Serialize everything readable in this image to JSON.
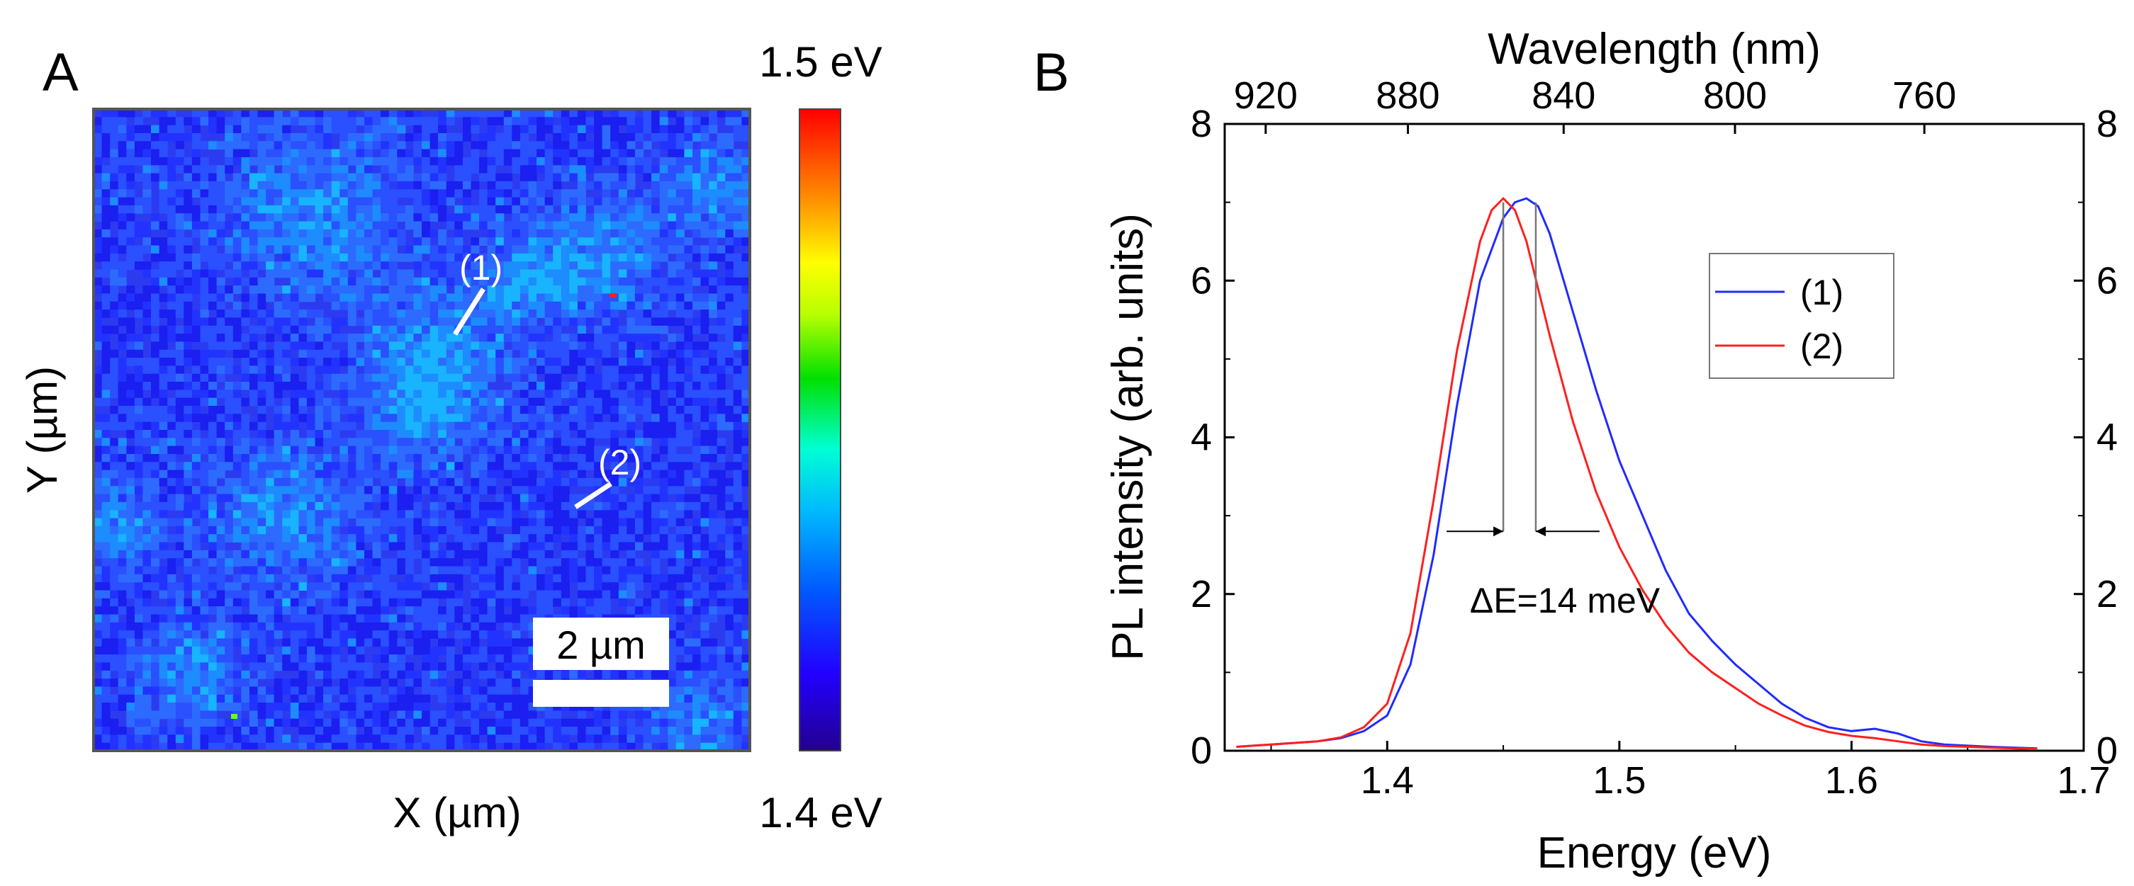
{
  "chart_data": [
    {
      "panel": "A",
      "type": "heatmap",
      "xlabel": "X (µm)",
      "ylabel": "Y (µm)",
      "colorbar": {
        "max_label": "1.5 eV",
        "min_label": "1.4 eV",
        "range": [
          1.4,
          1.5
        ],
        "unit": "eV"
      },
      "scalebar_label": "2 µm",
      "markers": [
        {
          "label": "(1)"
        },
        {
          "label": "(2)"
        }
      ]
    },
    {
      "panel": "B",
      "type": "line",
      "xlabel": "Energy (eV)",
      "ylabel": "PL intensity (arb. units)",
      "top_xlabel": "Wavelength (nm)",
      "xlim": [
        1.33,
        1.7
      ],
      "ylim": [
        0,
        8
      ],
      "xticks": [
        1.4,
        1.5,
        1.6,
        1.7
      ],
      "yticks": [
        0,
        2,
        4,
        6,
        8
      ],
      "top_ticks": [
        920,
        880,
        840,
        800,
        760
      ],
      "annotation": "ΔE=14 meV",
      "peaks": {
        "series1_eV": 1.464,
        "series2_eV": 1.45
      },
      "series": [
        {
          "name": "(1)",
          "color": "#1f2bff",
          "x": [
            1.335,
            1.35,
            1.37,
            1.38,
            1.39,
            1.4,
            1.41,
            1.42,
            1.43,
            1.44,
            1.45,
            1.455,
            1.46,
            1.465,
            1.47,
            1.48,
            1.49,
            1.5,
            1.51,
            1.52,
            1.53,
            1.54,
            1.55,
            1.56,
            1.57,
            1.58,
            1.59,
            1.6,
            1.61,
            1.62,
            1.63,
            1.64,
            1.66,
            1.68
          ],
          "y": [
            0.05,
            0.08,
            0.12,
            0.16,
            0.25,
            0.45,
            1.1,
            2.5,
            4.4,
            6.0,
            6.8,
            7.0,
            7.05,
            6.95,
            6.6,
            5.6,
            4.6,
            3.7,
            3.0,
            2.3,
            1.75,
            1.4,
            1.1,
            0.85,
            0.6,
            0.42,
            0.3,
            0.25,
            0.28,
            0.22,
            0.12,
            0.08,
            0.05,
            0.03
          ]
        },
        {
          "name": "(2)",
          "color": "#ff1f1f",
          "x": [
            1.335,
            1.35,
            1.37,
            1.38,
            1.39,
            1.4,
            1.41,
            1.42,
            1.43,
            1.44,
            1.445,
            1.45,
            1.455,
            1.46,
            1.47,
            1.48,
            1.49,
            1.5,
            1.51,
            1.52,
            1.53,
            1.54,
            1.55,
            1.56,
            1.57,
            1.58,
            1.59,
            1.6,
            1.61,
            1.62,
            1.63,
            1.64,
            1.66,
            1.68
          ],
          "y": [
            0.05,
            0.08,
            0.12,
            0.17,
            0.3,
            0.6,
            1.5,
            3.2,
            5.1,
            6.5,
            6.9,
            7.05,
            6.9,
            6.5,
            5.3,
            4.2,
            3.3,
            2.6,
            2.05,
            1.6,
            1.25,
            1.0,
            0.8,
            0.6,
            0.45,
            0.32,
            0.24,
            0.19,
            0.16,
            0.12,
            0.08,
            0.06,
            0.04,
            0.02
          ]
        }
      ]
    }
  ]
}
